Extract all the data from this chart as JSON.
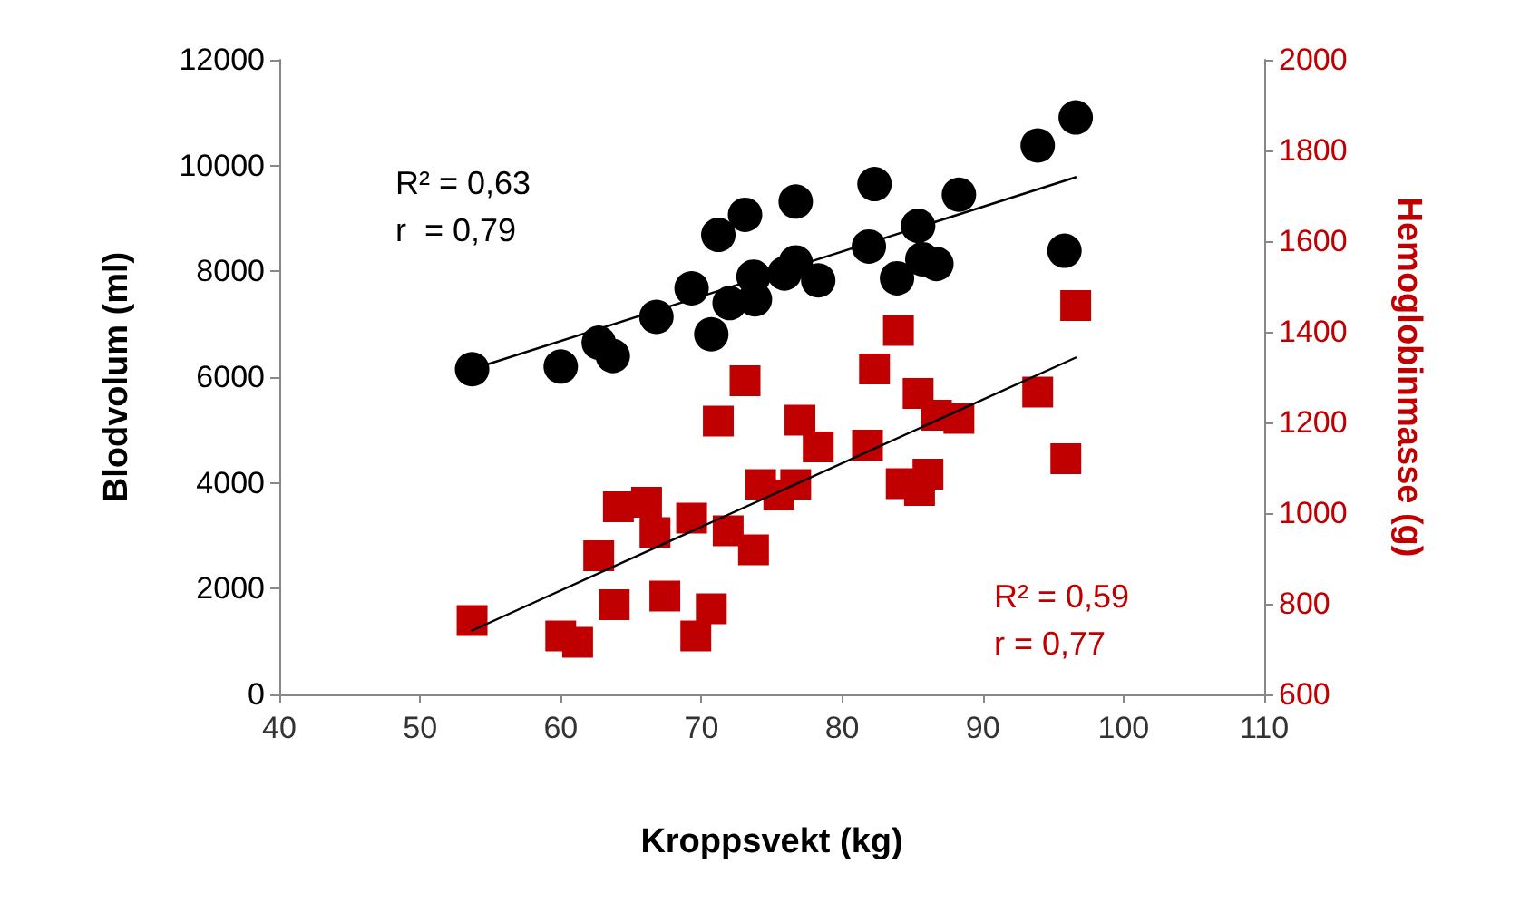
{
  "chart_data": {
    "type": "scatter",
    "xlabel": "Kroppsvekt (kg)",
    "ylabel": "Blodvolum (ml)",
    "y2label": "Hemoglobinmasse (g)",
    "xlim": [
      40,
      110
    ],
    "xticks": [
      40,
      50,
      60,
      70,
      80,
      90,
      100,
      110
    ],
    "ylim": [
      0,
      12000
    ],
    "yticks": [
      0,
      2000,
      4000,
      6000,
      8000,
      10000,
      12000
    ],
    "y2lim": [
      600,
      2000
    ],
    "y2ticks": [
      600,
      800,
      1000,
      1200,
      1400,
      1600,
      1800,
      2000
    ],
    "grid": false,
    "annotations": [
      "R² = 0,63\nr  = 0,79",
      "R² = 0,59\nr = 0,77"
    ],
    "series": [
      {
        "marker": "circle",
        "color": "#000000",
        "x": [
          53.7,
          60,
          62.7,
          63.7,
          66.8,
          69.3,
          70.7,
          71.2,
          73.1,
          72,
          73.7,
          73.8,
          76.7,
          75.9,
          76.7,
          78.3,
          82.3,
          81.9,
          85.4,
          83.9,
          85.7,
          86.7,
          88.3,
          93.9,
          96.6,
          95.8
        ],
        "values": [
          6150,
          6200,
          6650,
          6400,
          7140,
          7680,
          6810,
          8690,
          9070,
          7400,
          7900,
          7470,
          9320,
          7960,
          8170,
          7830,
          9650,
          8470,
          8860,
          7870,
          8230,
          8140,
          9450,
          10380,
          10910,
          8390
        ]
      },
      {
        "marker": "square",
        "axis": "y2",
        "color": "#c00000",
        "x": [
          53.7,
          60,
          61.2,
          62.7,
          63.8,
          64.1,
          66.1,
          66.7,
          67.4,
          69.3,
          69.6,
          70.7,
          71.2,
          73.1,
          71.9,
          73.7,
          74.2,
          75.5,
          96.6,
          84,
          82.3,
          85.4,
          93.9,
          86.7,
          88.3,
          77,
          78.3,
          81.8,
          95.9,
          86.1,
          76.7,
          84.2,
          85.5
        ],
        "values": [
          763,
          729,
          715,
          906,
          798,
          1014,
          1024,
          957,
          817,
          989,
          729,
          789,
          1203,
          1292,
          961,
          919,
          1063,
          1040,
          1458,
          1403,
          1318,
          1264,
          1267,
          1216,
          1209,
          1205,
          1146,
          1150,
          1120,
          1086,
          1063,
          1065,
          1050
        ]
      },
      {
        "type": "line",
        "marker": "none",
        "line_style": "solid",
        "color": "#000000",
        "x": [
          53.7,
          96.6
        ],
        "values": [
          6150,
          9780
        ]
      },
      {
        "type": "line",
        "marker": "none",
        "line_style": "solid",
        "axis": "y2",
        "color": "#000000",
        "x": [
          53.7,
          96.6
        ],
        "values": [
          741,
          1343
        ]
      }
    ]
  }
}
